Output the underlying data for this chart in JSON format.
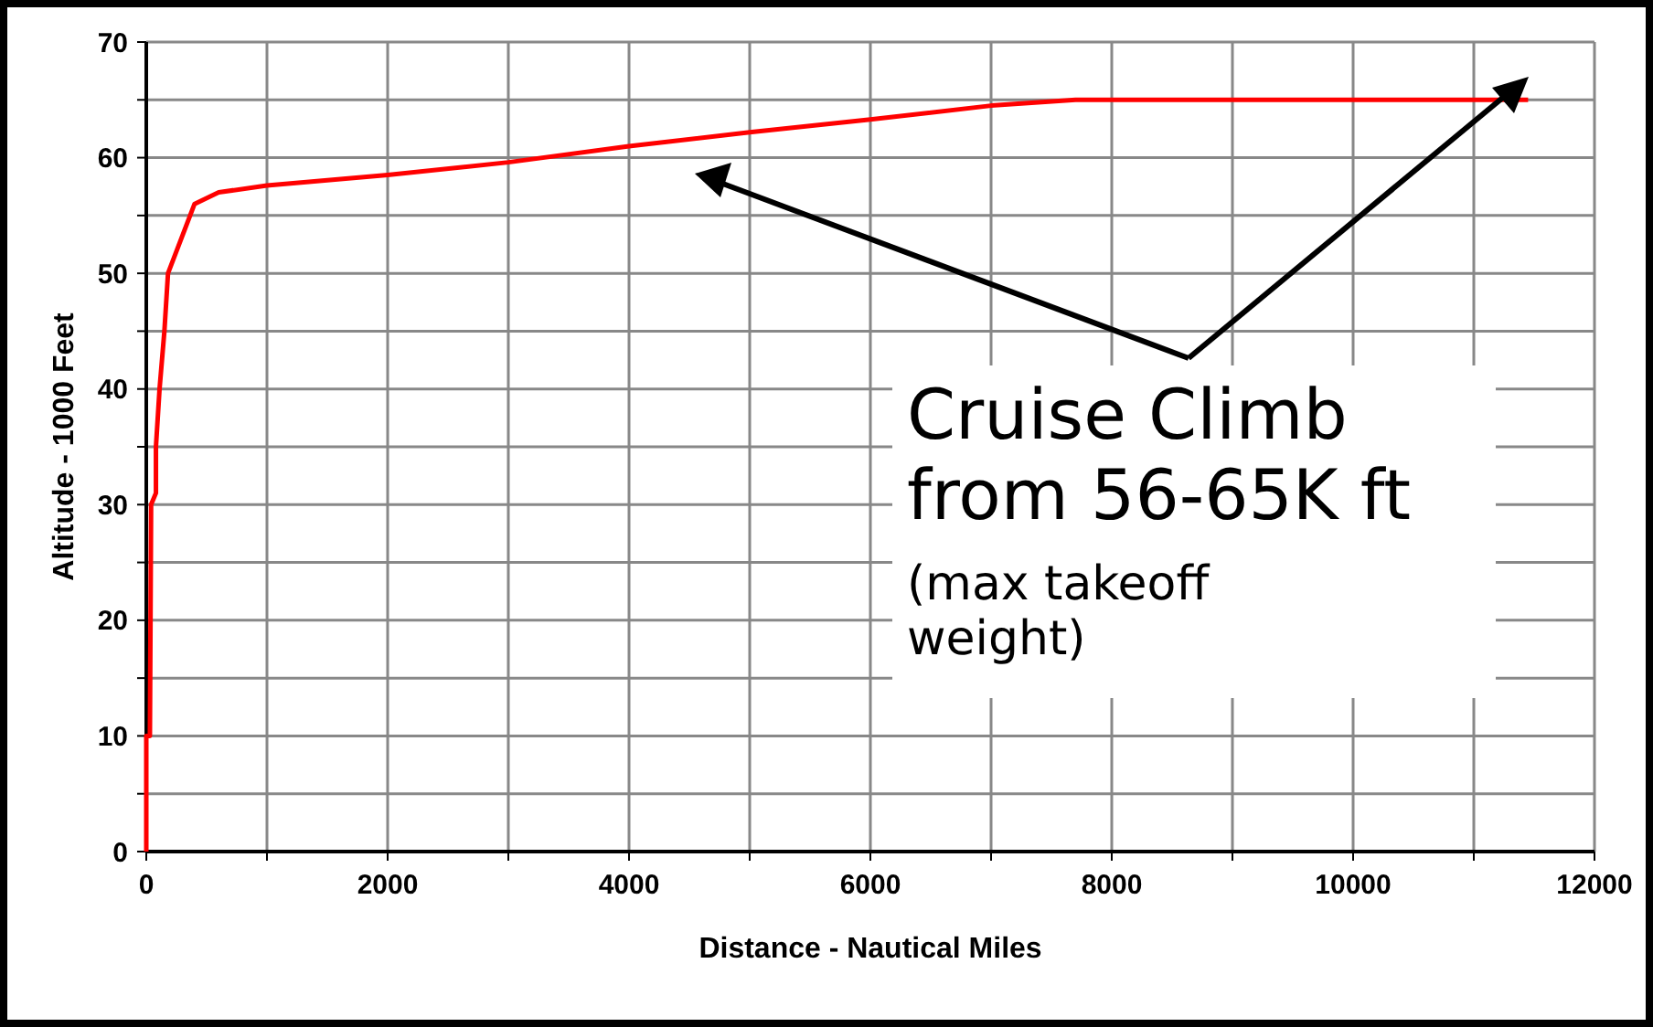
{
  "chart_data": {
    "type": "line",
    "xlabel": "Distance - Nautical Miles",
    "ylabel": "Altitude - 1000 Feet",
    "x": [
      0,
      0,
      30,
      40,
      80,
      80,
      110,
      150,
      180,
      400,
      600,
      1000,
      2000,
      3000,
      4000,
      5000,
      6000,
      7000,
      7700,
      11450
    ],
    "series": [
      {
        "color": "#ff0000",
        "values": [
          0,
          10,
          10,
          30,
          31,
          35,
          40,
          45,
          50,
          56,
          57,
          57.6,
          58.5,
          59.6,
          61,
          62.2,
          63.3,
          64.5,
          65,
          65
        ]
      }
    ],
    "xlim": [
      0,
      12000
    ],
    "xticks": [
      0,
      {
        "value": 1000,
        "label": null
      },
      2000,
      {
        "value": 3000,
        "label": null
      },
      4000,
      {
        "value": 5000,
        "label": null
      },
      6000,
      {
        "value": 7000,
        "label": null
      },
      8000,
      {
        "value": 9000,
        "label": null
      },
      10000,
      {
        "value": 11000,
        "label": null
      },
      12000
    ],
    "ylim": [
      0,
      70
    ],
    "yticks": [
      0,
      {
        "value": 5,
        "label": null
      },
      10,
      {
        "value": 15,
        "label": null
      },
      20,
      {
        "value": 25,
        "label": null
      },
      30,
      {
        "value": 35,
        "label": null
      },
      40,
      {
        "value": 45,
        "label": null
      },
      50,
      {
        "value": 55,
        "label": null
      },
      60,
      {
        "value": 65,
        "label": null
      },
      70
    ],
    "grid": true,
    "marker": "none",
    "line_style": "solid",
    "annotations": [
      "Cruise Climb from 56-65K ft",
      "(max takeoff weight)"
    ]
  }
}
